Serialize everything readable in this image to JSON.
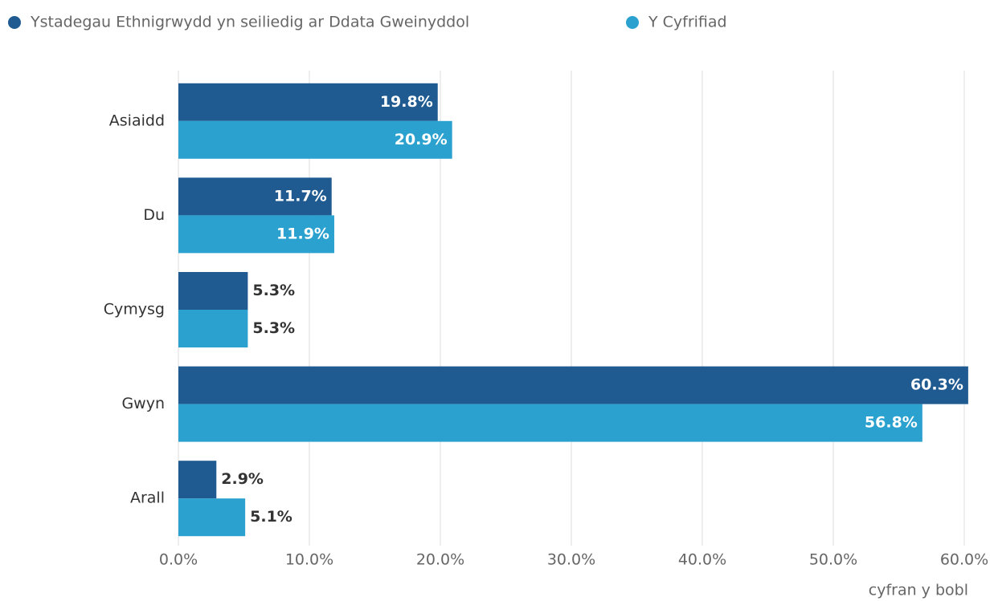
{
  "chart_data": {
    "type": "bar",
    "orientation": "horizontal",
    "categories": [
      "Asiaidd",
      "Du",
      "Cymysg",
      "Gwyn",
      "Arall"
    ],
    "series": [
      {
        "name": "Ystadegau Ethnigrwydd yn seiliedig ar Ddata Gweinyddol",
        "color": "#1f5b91",
        "values": [
          19.8,
          11.7,
          5.3,
          60.3,
          2.9
        ],
        "value_labels": [
          "19.8%",
          "11.7%",
          "5.3%",
          "60.3%",
          "2.9%"
        ]
      },
      {
        "name": "Y Cyfrifiad",
        "color": "#2aa1cf",
        "values": [
          20.9,
          11.9,
          5.3,
          56.8,
          5.1
        ],
        "value_labels": [
          "20.9%",
          "11.9%",
          "5.3%",
          "56.8%",
          "5.1%"
        ]
      }
    ],
    "xlabel": "cyfran y bobl",
    "xlim": [
      0,
      60
    ],
    "xticks": [
      {
        "value": 0,
        "label": "0.0%"
      },
      {
        "value": 10,
        "label": "10.0%"
      },
      {
        "value": 20,
        "label": "20.0%"
      },
      {
        "value": 30,
        "label": "30.0%"
      },
      {
        "value": 40,
        "label": "40.0%"
      },
      {
        "value": 50,
        "label": "50.0%"
      },
      {
        "value": 60,
        "label": "60.0%"
      }
    ],
    "grid": true,
    "legend": "top"
  }
}
